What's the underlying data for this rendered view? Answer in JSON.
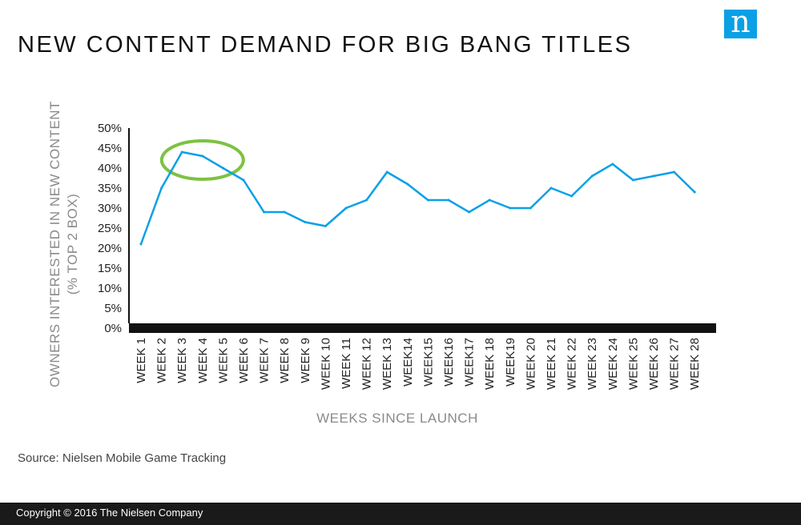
{
  "header": {
    "title": "NEW CONTENT DEMAND FOR BIG BANG TITLES",
    "logo_letter": "n",
    "logo_color": "#0aa0e6"
  },
  "chart_data": {
    "type": "line",
    "title": "NEW CONTENT DEMAND FOR BIG BANG TITLES",
    "xlabel": "WEEKS SINCE LAUNCH",
    "ylabel": [
      "OWNERS INTERESTED IN NEW CONTENT",
      "(% TOP 2 BOX)"
    ],
    "ylim": [
      0,
      50
    ],
    "yticks": [
      "0%",
      "5%",
      "10%",
      "15%",
      "20%",
      "25%",
      "30%",
      "35%",
      "40%",
      "45%",
      "50%"
    ],
    "ytick_values": [
      0,
      5,
      10,
      15,
      20,
      25,
      30,
      35,
      40,
      45,
      50
    ],
    "grid": false,
    "line_color": "#0aa0e6",
    "highlight_color": "#7dc242",
    "highlight_range": [
      3,
      5
    ],
    "categories": [
      "WEEK 1",
      "WEEK 2",
      "WEEK 3",
      "WEEK 4",
      "WEEK 5",
      "WEEK 6",
      "WEEK 7",
      "WEEK 8",
      "WEEK 9",
      "WEEK 10",
      "WEEK 11",
      "WEEK 12",
      "WEEK 13",
      "WEEK14",
      "WEEK15",
      "WEEK16",
      "WEEK17",
      "WEEK 18",
      "WEEK19",
      "WEEK 20",
      "WEEK 21",
      "WEEK 22",
      "WEEK 23",
      "WEEK 24",
      "WEEK 25",
      "WEEK 26",
      "WEEK 27",
      "WEEK 28"
    ],
    "values": [
      21,
      35,
      44,
      43,
      40,
      37,
      29,
      29,
      26.5,
      25.5,
      30,
      32,
      39,
      36,
      32,
      32,
      29,
      32,
      30,
      30,
      35,
      33,
      38,
      41,
      37,
      38,
      39,
      34
    ]
  },
  "source": "Source: Nielsen Mobile Game Tracking",
  "footer": {
    "copyright": "Copyright © 2016 The Nielsen Company"
  }
}
